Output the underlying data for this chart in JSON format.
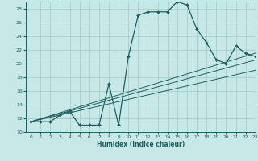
{
  "title": "",
  "xlabel": "Humidex (Indice chaleur)",
  "bg_color": "#c8e8e8",
  "line_color": "#1a6060",
  "grid_color": "#a0c8c8",
  "main_x": [
    0,
    1,
    2,
    3,
    4,
    5,
    6,
    7,
    8,
    9,
    10,
    11,
    12,
    13,
    14,
    15,
    16,
    17,
    18,
    19,
    20,
    21,
    22,
    23
  ],
  "main_y": [
    11.5,
    11.5,
    11.5,
    12.5,
    13.0,
    11.0,
    11.0,
    11.0,
    17.0,
    11.0,
    21.0,
    27.0,
    27.5,
    27.5,
    27.5,
    29.0,
    28.5,
    25.0,
    23.0,
    20.5,
    20.0,
    22.5,
    21.5,
    21.0
  ],
  "line1_x": [
    0,
    23
  ],
  "line1_y": [
    11.5,
    21.5
  ],
  "line2_x": [
    0,
    23
  ],
  "line2_y": [
    11.5,
    19.0
  ],
  "line3_x": [
    0,
    23
  ],
  "line3_y": [
    11.5,
    20.5
  ],
  "xlim": [
    -0.5,
    23
  ],
  "ylim": [
    10,
    29
  ],
  "yticks": [
    10,
    12,
    14,
    16,
    18,
    20,
    22,
    24,
    26,
    28
  ],
  "xticks": [
    0,
    1,
    2,
    3,
    4,
    5,
    6,
    7,
    8,
    9,
    10,
    11,
    12,
    13,
    14,
    15,
    16,
    17,
    18,
    19,
    20,
    21,
    22,
    23
  ]
}
